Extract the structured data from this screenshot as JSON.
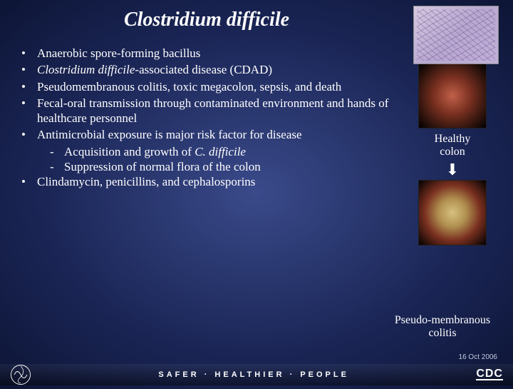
{
  "title": "Clostridium difficile",
  "bullets": [
    {
      "text": "Anaerobic spore-forming bacillus"
    },
    {
      "html": "<span class='italic'>Clostridium difficile</span>-associated disease (CDAD)"
    },
    {
      "text": "Pseudomembranous colitis, toxic megacolon, sepsis, and death"
    },
    {
      "text": "Fecal-oral transmission through contaminated environment and hands of healthcare personnel"
    },
    {
      "text": "Antimicrobial exposure is major risk factor for disease",
      "subs": [
        {
          "html": "Acquisition and growth of <span class='italic'>C. difficile</span>"
        },
        {
          "text": "Suppression of normal flora of the colon"
        }
      ]
    },
    {
      "text": "Clindamycin, penicillins, and cephalosporins"
    }
  ],
  "images": {
    "healthy_caption_line1": "Healthy",
    "healthy_caption_line2": "colon",
    "diseased_caption_line1": "Pseudo-membranous",
    "diseased_caption_line2": "colitis"
  },
  "footer": {
    "tagline": "SAFER · HEALTHIER · PEOPLE",
    "cdc": "CDC",
    "date": "16 Oct 2006"
  }
}
